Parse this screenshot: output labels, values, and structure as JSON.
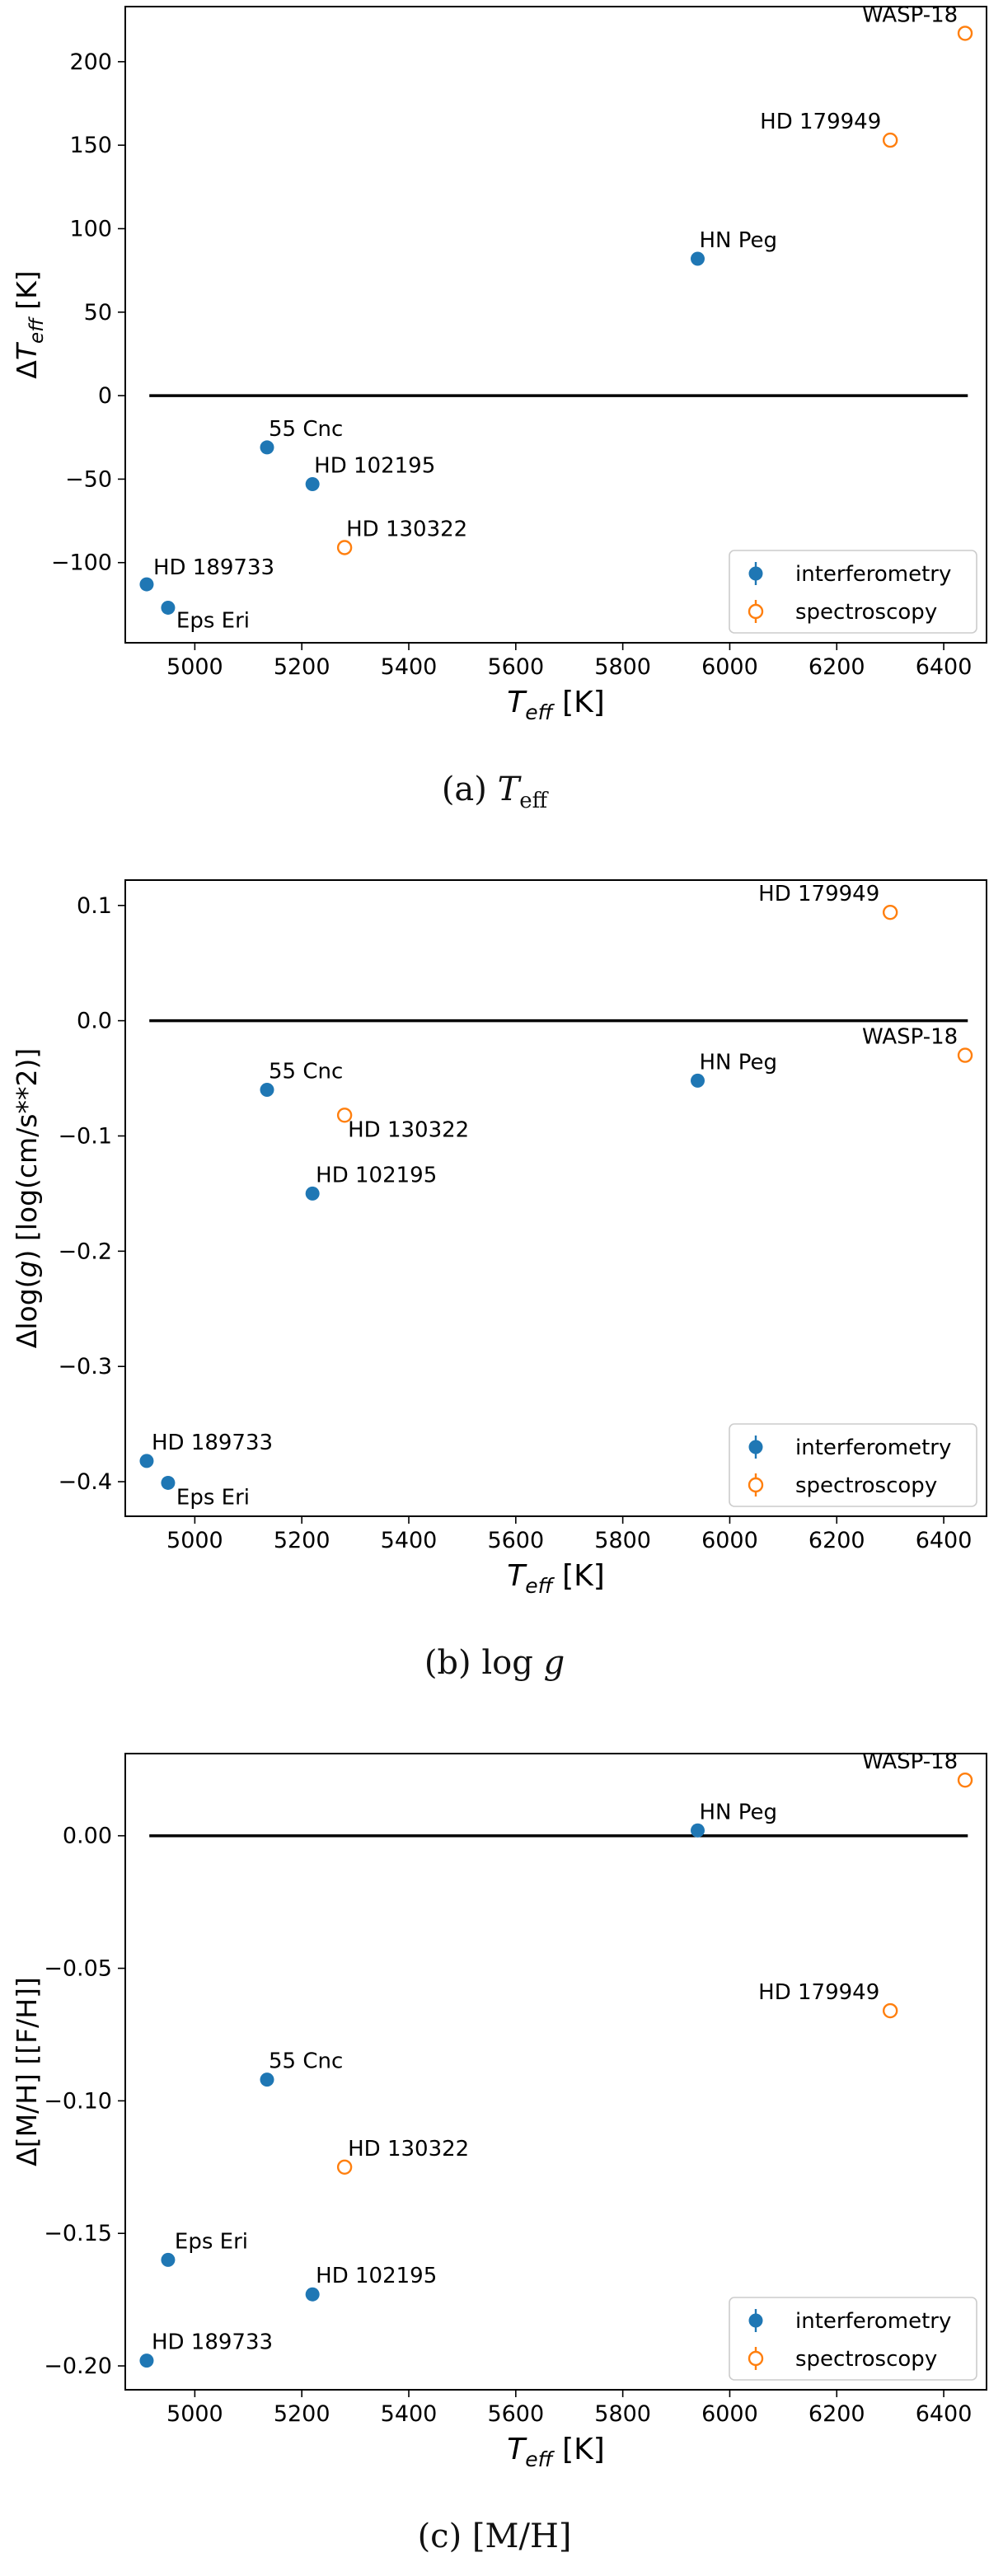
{
  "figure": {
    "captions": [
      {
        "label": "(a)",
        "var": "T",
        "sub": "eff"
      },
      {
        "label": "(b)",
        "pre": "log",
        "var": "g"
      },
      {
        "label": "(c)",
        "text": "[M/H]"
      }
    ]
  },
  "legend": {
    "entries": [
      "interferometry",
      "spectroscopy"
    ]
  },
  "colors": {
    "interferometry": "#1f77b4",
    "spectroscopy": "#ff7f0e",
    "zero_line": "#000000"
  },
  "chart_data": [
    {
      "type": "scatter",
      "title": "(a) Teff",
      "xlabel": "T_eff [K]",
      "ylabel": "ΔT_eff [K]",
      "xlim": [
        4870,
        6480
      ],
      "ylim": [
        -148,
        233
      ],
      "xticks": [
        5000,
        5200,
        5400,
        5600,
        5800,
        6000,
        6200,
        6400
      ],
      "yticks": [
        -100,
        -50,
        0,
        50,
        100,
        150,
        200
      ],
      "ytick_labels": [
        "−100",
        "−50",
        "0",
        "50",
        "100",
        "150",
        "200"
      ],
      "zero_line": [
        4915,
        6445
      ],
      "legend_position": "lower-right",
      "series": [
        {
          "name": "interferometry",
          "points": [
            {
              "label": "HD 189733",
              "x": 4910,
              "y": -113
            },
            {
              "label": "Eps Eri",
              "x": 4950,
              "y": -127
            },
            {
              "label": "55 Cnc",
              "x": 5135,
              "y": -31
            },
            {
              "label": "HD 102195",
              "x": 5220,
              "y": -53
            },
            {
              "label": "HN Peg",
              "x": 5940,
              "y": 82
            }
          ]
        },
        {
          "name": "spectroscopy",
          "points": [
            {
              "label": "HD 130322",
              "x": 5280,
              "y": -91
            },
            {
              "label": "HD 179949",
              "x": 6300,
              "y": 153
            },
            {
              "label": "WASP-18",
              "x": 6440,
              "y": 217
            }
          ]
        }
      ]
    },
    {
      "type": "scatter",
      "title": "(b) log g",
      "xlabel": "T_eff [K]",
      "ylabel": "Δlog(g) [log(cm/s**2)]",
      "xlim": [
        4870,
        6480
      ],
      "ylim": [
        -0.43,
        0.122
      ],
      "xticks": [
        5000,
        5200,
        5400,
        5600,
        5800,
        6000,
        6200,
        6400
      ],
      "yticks": [
        -0.4,
        -0.3,
        -0.2,
        -0.1,
        0.0,
        0.1
      ],
      "ytick_labels": [
        "−0.4",
        "−0.3",
        "−0.2",
        "−0.1",
        "0.0",
        "0.1"
      ],
      "zero_line": [
        4915,
        6445
      ],
      "legend_position": "lower-right",
      "series": [
        {
          "name": "interferometry",
          "points": [
            {
              "label": "HD 189733",
              "x": 4910,
              "y": -0.382
            },
            {
              "label": "Eps Eri",
              "x": 4950,
              "y": -0.401
            },
            {
              "label": "55 Cnc",
              "x": 5135,
              "y": -0.06
            },
            {
              "label": "HD 102195",
              "x": 5220,
              "y": -0.15
            },
            {
              "label": "HN Peg",
              "x": 5940,
              "y": -0.052
            }
          ]
        },
        {
          "name": "spectroscopy",
          "points": [
            {
              "label": "HD 130322",
              "x": 5280,
              "y": -0.082
            },
            {
              "label": "HD 179949",
              "x": 6300,
              "y": 0.094
            },
            {
              "label": "WASP-18",
              "x": 6440,
              "y": -0.03
            }
          ]
        }
      ]
    },
    {
      "type": "scatter",
      "title": "(c) [M/H]",
      "xlabel": "T_eff [K]",
      "ylabel": "Δ[M/H] [[F/H]]",
      "xlim": [
        4870,
        6480
      ],
      "ylim": [
        -0.209,
        0.031
      ],
      "xticks": [
        5000,
        5200,
        5400,
        5600,
        5800,
        6000,
        6200,
        6400
      ],
      "yticks": [
        -0.2,
        -0.15,
        -0.1,
        -0.05,
        0.0
      ],
      "ytick_labels": [
        "−0.20",
        "−0.15",
        "−0.10",
        "−0.05",
        "0.00"
      ],
      "zero_line": [
        4915,
        6445
      ],
      "legend_position": "lower-right",
      "series": [
        {
          "name": "interferometry",
          "points": [
            {
              "label": "HD 189733",
              "x": 4910,
              "y": -0.198
            },
            {
              "label": "Eps Eri",
              "x": 4950,
              "y": -0.16
            },
            {
              "label": "55 Cnc",
              "x": 5135,
              "y": -0.092
            },
            {
              "label": "HD 102195",
              "x": 5220,
              "y": -0.173
            },
            {
              "label": "HN Peg",
              "x": 5940,
              "y": 0.002
            }
          ]
        },
        {
          "name": "spectroscopy",
          "points": [
            {
              "label": "HD 130322",
              "x": 5280,
              "y": -0.125
            },
            {
              "label": "HD 179949",
              "x": 6300,
              "y": -0.066
            },
            {
              "label": "WASP-18",
              "x": 6440,
              "y": 0.021
            }
          ]
        }
      ]
    }
  ]
}
